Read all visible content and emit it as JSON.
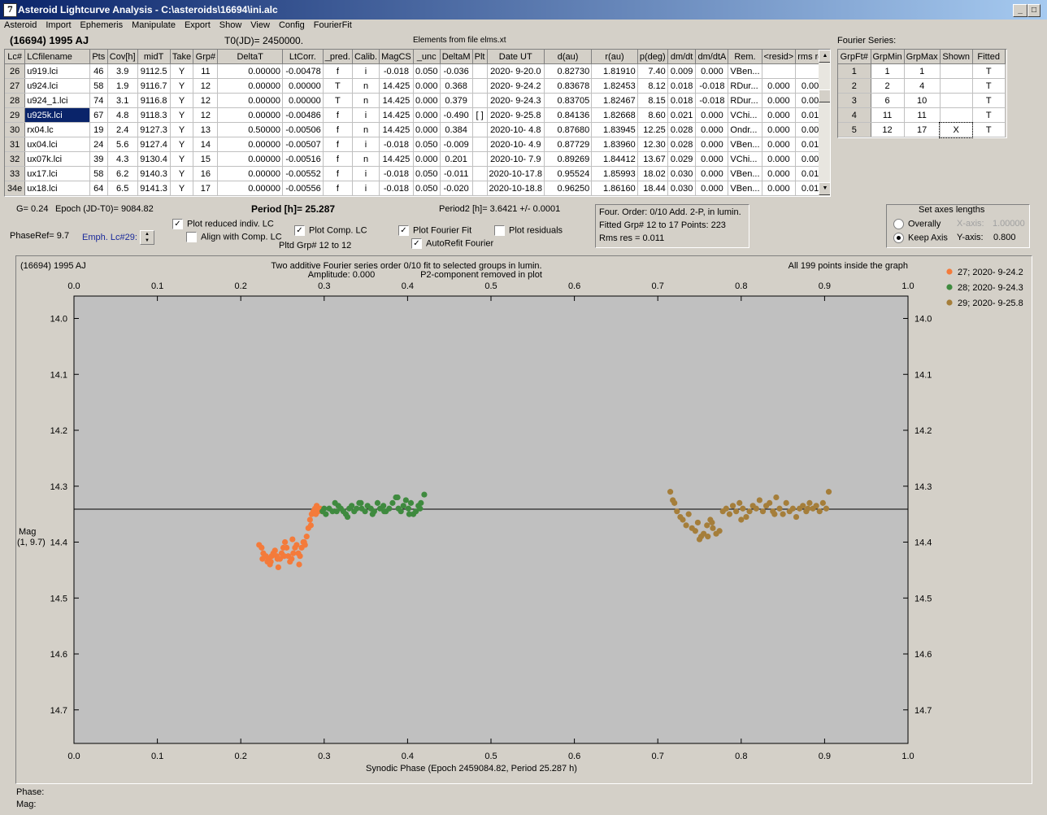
{
  "window": {
    "title": "Asteroid Lightcurve Analysis - C:\\asteroids\\16694\\ini.alc",
    "icon": "app-icon-7",
    "controls": [
      "_",
      "□",
      "X"
    ]
  },
  "menu": [
    "Asteroid",
    "Import",
    "Ephemeris",
    "Manipulate",
    "Export",
    "Show",
    "View",
    "Config",
    "FourierFit"
  ],
  "header": {
    "asteroid": "(16694) 1995 AJ",
    "t0": "T0(JD)= 2450000.",
    "elements": "Elements from file elms.xt"
  },
  "table": {
    "columns": [
      "Lc#",
      "LCfilename",
      "Pts",
      "Cov[h]",
      "midT",
      "Take",
      "Grp#",
      "DeltaT",
      "LtCorr.",
      "_pred.",
      "Calib.",
      "MagCS",
      "_unc",
      "DeltaM",
      "Plt",
      "Date UT",
      "d(au)",
      "r(au)",
      "p(deg)",
      "dm/dt",
      "dm/dtA",
      "Rem.",
      "<resid>",
      "rms res"
    ],
    "rows": [
      [
        "26",
        "u919.lci",
        "46",
        "3.9",
        "9112.5",
        "Y",
        "11",
        "0.00000",
        "-0.00478",
        "f",
        "i",
        "-0.018",
        "0.050",
        "-0.036",
        "",
        "2020- 9-20.0",
        "0.82730",
        "1.81910",
        "7.40",
        "0.009",
        "0.000",
        "VBen...",
        "",
        ""
      ],
      [
        "27",
        "u924.lci",
        "58",
        "1.9",
        "9116.7",
        "Y",
        "12",
        "0.00000",
        "0.00000",
        "T",
        "n",
        "14.425",
        "0.000",
        "0.368",
        "",
        "2020- 9-24.2",
        "0.83678",
        "1.82453",
        "8.12",
        "0.018",
        "-0.018",
        "RDur...",
        "0.000",
        "0.004"
      ],
      [
        "28",
        "u924_1.lci",
        "74",
        "3.1",
        "9116.8",
        "Y",
        "12",
        "0.00000",
        "0.00000",
        "T",
        "n",
        "14.425",
        "0.000",
        "0.379",
        "",
        "2020- 9-24.3",
        "0.83705",
        "1.82467",
        "8.15",
        "0.018",
        "-0.018",
        "RDur...",
        "0.000",
        "0.009"
      ],
      [
        "29",
        "u925k.lci",
        "67",
        "4.8",
        "9118.3",
        "Y",
        "12",
        "0.00000",
        "-0.00486",
        "f",
        "i",
        "14.425",
        "0.000",
        "-0.490",
        "[ ]",
        "2020- 9-25.8",
        "0.84136",
        "1.82668",
        "8.60",
        "0.021",
        "0.000",
        "VChi...",
        "0.000",
        "0.010"
      ],
      [
        "30",
        "rx04.lc",
        "19",
        "2.4",
        "9127.3",
        "Y",
        "13",
        "0.50000",
        "-0.00506",
        "f",
        "n",
        "14.425",
        "0.000",
        "0.384",
        "",
        "2020-10- 4.8",
        "0.87680",
        "1.83945",
        "12.25",
        "0.028",
        "0.000",
        "Ondr...",
        "0.000",
        "0.005"
      ],
      [
        "31",
        "ux04.lci",
        "24",
        "5.6",
        "9127.4",
        "Y",
        "14",
        "0.00000",
        "-0.00507",
        "f",
        "i",
        "-0.018",
        "0.050",
        "-0.009",
        "",
        "2020-10- 4.9",
        "0.87729",
        "1.83960",
        "12.30",
        "0.028",
        "0.000",
        "VBen...",
        "0.000",
        "0.014"
      ],
      [
        "32",
        "ux07k.lci",
        "39",
        "4.3",
        "9130.4",
        "Y",
        "15",
        "0.00000",
        "-0.00516",
        "f",
        "n",
        "14.425",
        "0.000",
        "0.201",
        "",
        "2020-10- 7.9",
        "0.89269",
        "1.84412",
        "13.67",
        "0.029",
        "0.000",
        "VChi...",
        "0.000",
        "0.009"
      ],
      [
        "33",
        "ux17.lci",
        "58",
        "6.2",
        "9140.3",
        "Y",
        "16",
        "0.00000",
        "-0.00552",
        "f",
        "i",
        "-0.018",
        "0.050",
        "-0.011",
        "",
        "2020-10-17.8",
        "0.95524",
        "1.85993",
        "18.02",
        "0.030",
        "0.000",
        "VBen...",
        "0.000",
        "0.012"
      ],
      [
        "34e",
        "ux18.lci",
        "64",
        "6.5",
        "9141.3",
        "Y",
        "17",
        "0.00000",
        "-0.00556",
        "f",
        "i",
        "-0.018",
        "0.050",
        "-0.020",
        "",
        "2020-10-18.8",
        "0.96250",
        "1.86160",
        "18.44",
        "0.030",
        "0.000",
        "VBen...",
        "0.000",
        "0.014"
      ]
    ],
    "selected_file": "u925k.lci"
  },
  "fourier_series": {
    "title": "Fourier Series:",
    "columns": [
      "GrpFt#",
      "GrpMin",
      "GrpMax",
      "Shown",
      "Fitted"
    ],
    "rows": [
      [
        "1",
        "1",
        "1",
        "",
        "T"
      ],
      [
        "2",
        "2",
        "4",
        "",
        "T"
      ],
      [
        "3",
        "6",
        "10",
        "",
        "T"
      ],
      [
        "4",
        "11",
        "11",
        "",
        "T"
      ],
      [
        "5",
        "12",
        "17",
        "X",
        "T"
      ]
    ]
  },
  "info": {
    "g": "G= 0.24",
    "epoch": "Epoch (JD-T0)= 9084.82",
    "period": "Period [h]= 25.287",
    "period2": "Period2 [h]= 3.6421 +/- 0.0001",
    "phase_ref": "PhaseRef= 9.7",
    "emph": "Emph. Lc#29:",
    "pltd_grp": "Pltd Grp#  12 to   12"
  },
  "checkboxes": {
    "plot_reduced": {
      "label": "Plot reduced indiv. LC",
      "checked": true
    },
    "align_comp": {
      "label": "Align with Comp. LC",
      "checked": false
    },
    "plot_comp": {
      "label": "Plot Comp. LC",
      "checked": true
    },
    "plot_fourier": {
      "label": "Plot Fourier Fit",
      "checked": true
    },
    "autorefit": {
      "label": "AutoRefit Fourier",
      "checked": true
    },
    "plot_residuals": {
      "label": "Plot residuals",
      "checked": false
    }
  },
  "fourier_info": {
    "line1": "Four. Order:  0/10    Add. 2-P, in lumin.",
    "line2": "Fitted Grp# 12 to 17 Points: 223",
    "line3": "Rms res       = 0.011"
  },
  "axes_box": {
    "title": "Set axes lengths",
    "overally": "Overally",
    "keep_axis": "Keep Axis",
    "x_axis_label": "X-axis:",
    "x_axis_value": "1.00000",
    "y_axis_label": "Y-axis:",
    "y_axis_value": "0.800",
    "selected": "keep_axis"
  },
  "plot_text": {
    "object": "(16694) 1995 AJ",
    "line1": "Two additive Fourier series order 0/10 fit to selected groups in lumin.",
    "line2a": "Amplitude: 0.000",
    "line2b": "P2-component removed in plot",
    "inside": "All 199 points inside the graph",
    "ylabel1": "Mag",
    "ylabel2": "(1, 9.7)",
    "status_phase": "Phase:",
    "status_mag": "Mag:"
  },
  "chart_data": {
    "type": "scatter",
    "xlabel": "Synodic Phase (Epoch 2459084.82, Period 25.287 h)",
    "ylabel": "Mag (1, 9.7)",
    "xlim": [
      0.0,
      1.0
    ],
    "ylim": [
      14.0,
      14.8
    ],
    "y_inverted": true,
    "x_ticks": [
      "0.0",
      "0.1",
      "0.2",
      "0.3",
      "0.4",
      "0.5",
      "0.6",
      "0.7",
      "0.8",
      "0.9",
      "1.0"
    ],
    "y_ticks": [
      "14.0",
      "14.1",
      "14.2",
      "14.3",
      "14.4",
      "14.5",
      "14.6",
      "14.7"
    ],
    "fit_line_y": 14.341,
    "legend_position": "right",
    "series": [
      {
        "name": "27; 2020- 9-24.2",
        "color": "#f47b3b",
        "x": [
          0.222,
          0.225,
          0.227,
          0.23,
          0.232,
          0.233,
          0.235,
          0.237,
          0.239,
          0.241,
          0.243,
          0.245,
          0.247,
          0.249,
          0.251,
          0.253,
          0.255,
          0.257,
          0.259,
          0.261,
          0.263,
          0.265,
          0.267,
          0.269,
          0.271,
          0.273,
          0.275,
          0.277,
          0.279,
          0.281,
          0.283,
          0.285,
          0.287,
          0.289,
          0.291,
          0.293,
          0.295,
          0.298,
          0.226,
          0.236,
          0.244,
          0.252,
          0.262,
          0.27,
          0.276,
          0.284,
          0.29
        ],
        "y": [
          14.405,
          14.41,
          14.42,
          14.425,
          14.435,
          14.43,
          14.44,
          14.425,
          14.42,
          14.415,
          14.425,
          14.445,
          14.43,
          14.42,
          14.41,
          14.4,
          14.41,
          14.425,
          14.435,
          14.43,
          14.42,
          14.41,
          14.405,
          14.42,
          14.425,
          14.41,
          14.4,
          14.405,
          14.39,
          14.375,
          14.36,
          14.35,
          14.345,
          14.34,
          14.335,
          14.345,
          14.34,
          14.345,
          14.43,
          14.435,
          14.43,
          14.425,
          14.395,
          14.44,
          14.4,
          14.37,
          14.35
        ]
      },
      {
        "name": "28; 2020- 9-24.3",
        "color": "#3f8a3f",
        "x": [
          0.298,
          0.302,
          0.306,
          0.31,
          0.313,
          0.317,
          0.32,
          0.323,
          0.326,
          0.33,
          0.333,
          0.336,
          0.339,
          0.342,
          0.345,
          0.349,
          0.352,
          0.356,
          0.36,
          0.364,
          0.367,
          0.371,
          0.374,
          0.378,
          0.382,
          0.386,
          0.389,
          0.392,
          0.395,
          0.398,
          0.401,
          0.404,
          0.407,
          0.41,
          0.413,
          0.416,
          0.42,
          0.3,
          0.315,
          0.328,
          0.344,
          0.358,
          0.372,
          0.388,
          0.402,
          0.415
        ],
        "y": [
          14.345,
          14.35,
          14.34,
          14.345,
          14.33,
          14.335,
          14.34,
          14.345,
          14.35,
          14.34,
          14.335,
          14.345,
          14.34,
          14.33,
          14.34,
          14.345,
          14.335,
          14.34,
          14.345,
          14.33,
          14.34,
          14.335,
          14.345,
          14.34,
          14.33,
          14.32,
          14.34,
          14.345,
          14.335,
          14.325,
          14.34,
          14.33,
          14.35,
          14.345,
          14.335,
          14.33,
          14.315,
          14.34,
          14.345,
          14.355,
          14.33,
          14.35,
          14.345,
          14.32,
          14.35,
          14.34
        ]
      },
      {
        "name": "29; 2020- 9-25.8",
        "color": "#a57e3a",
        "x": [
          0.715,
          0.718,
          0.72,
          0.723,
          0.727,
          0.73,
          0.734,
          0.737,
          0.741,
          0.745,
          0.748,
          0.752,
          0.755,
          0.759,
          0.763,
          0.766,
          0.77,
          0.774,
          0.778,
          0.782,
          0.786,
          0.79,
          0.794,
          0.798,
          0.802,
          0.806,
          0.81,
          0.814,
          0.818,
          0.822,
          0.826,
          0.83,
          0.834,
          0.838,
          0.842,
          0.846,
          0.85,
          0.854,
          0.858,
          0.862,
          0.866,
          0.87,
          0.874,
          0.878,
          0.882,
          0.886,
          0.89,
          0.894,
          0.898,
          0.902,
          0.905,
          0.76,
          0.75,
          0.765,
          0.8,
          0.84,
          0.88
        ],
        "y": [
          14.31,
          14.325,
          14.33,
          14.345,
          14.355,
          14.36,
          14.37,
          14.35,
          14.375,
          14.38,
          14.365,
          14.39,
          14.385,
          14.37,
          14.36,
          14.375,
          14.385,
          14.38,
          14.345,
          14.34,
          14.35,
          14.335,
          14.345,
          14.33,
          14.34,
          14.355,
          14.345,
          14.335,
          14.34,
          14.325,
          14.345,
          14.335,
          14.33,
          14.345,
          14.32,
          14.34,
          14.35,
          14.33,
          14.345,
          14.34,
          14.355,
          14.34,
          14.335,
          14.345,
          14.33,
          14.34,
          14.335,
          14.345,
          14.33,
          14.34,
          14.31,
          14.39,
          14.395,
          14.365,
          14.36,
          14.35,
          14.34
        ]
      }
    ]
  }
}
